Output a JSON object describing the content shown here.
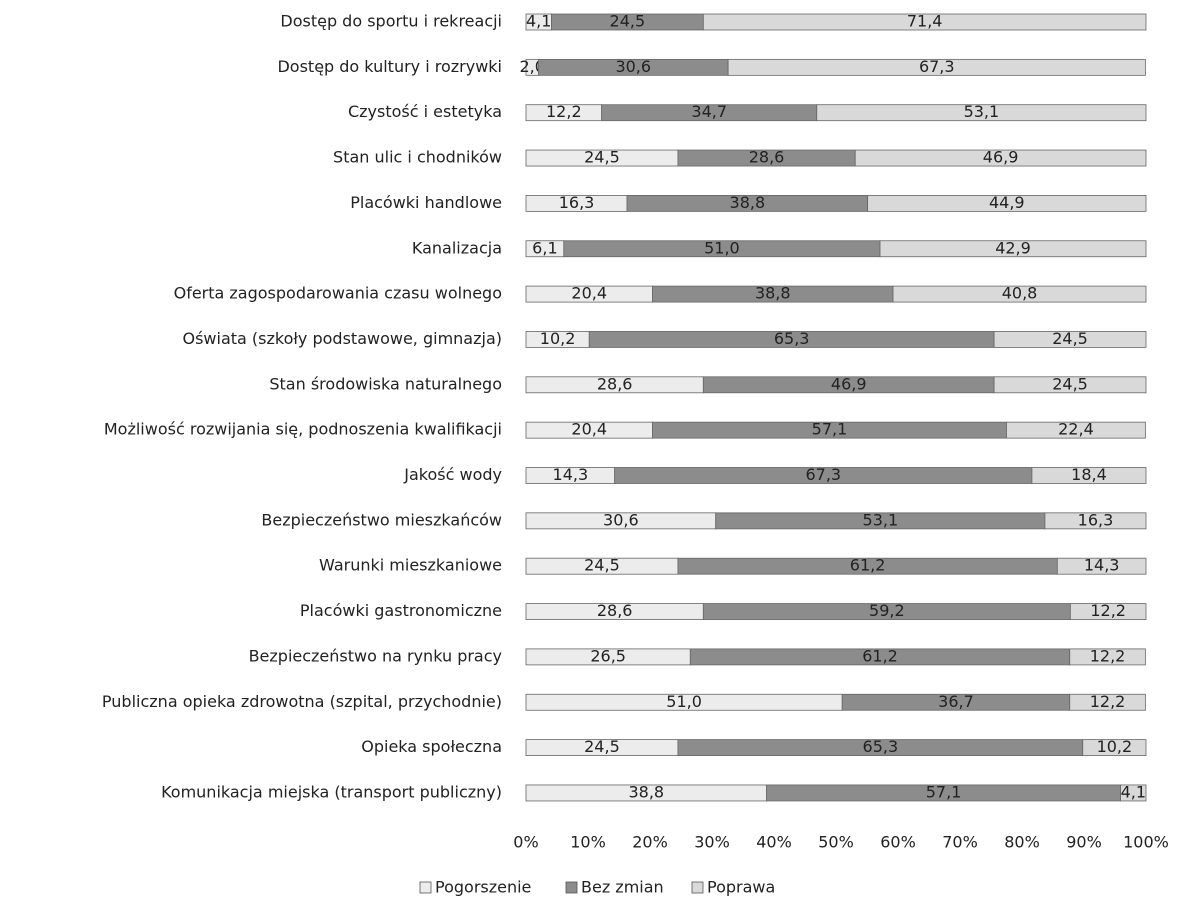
{
  "chart_data": {
    "type": "bar",
    "orientation": "horizontal",
    "stacked": true,
    "categories": [
      "Dostęp do sportu i rekreacji",
      "Dostęp do kultury i rozrywki",
      "Czystość i estetyka",
      "Stan ulic i chodników",
      "Placówki handlowe",
      "Kanalizacja",
      "Oferta zagospodarowania czasu wolnego",
      "Oświata (szkoły podstawowe, gimnazja)",
      "Stan środowiska naturalnego",
      "Możliwość rozwijania się, podnoszenia kwalifikacji",
      "Jakość wody",
      "Bezpieczeństwo mieszkańców",
      "Warunki mieszkaniowe",
      "Placówki gastronomiczne",
      "Bezpieczeństwo na rynku pracy",
      "Publiczna opieka zdrowotna (szpital, przychodnie)",
      "Opieka społeczna",
      "Komunikacja miejska (transport publiczny)"
    ],
    "series": [
      {
        "name": "Pogorszenie",
        "color": "#ececec",
        "values": [
          4.1,
          2.0,
          12.2,
          24.5,
          16.3,
          6.1,
          20.4,
          10.2,
          28.6,
          20.4,
          14.3,
          30.6,
          24.5,
          28.6,
          26.5,
          51.0,
          24.5,
          38.8
        ],
        "value_labels": [
          "4,1",
          "2,0",
          "12,2",
          "24,5",
          "16,3",
          "6,1",
          "20,4",
          "10,2",
          "28,6",
          "20,4",
          "14,3",
          "30,6",
          "24,5",
          "28,6",
          "26,5",
          "51,0",
          "24,5",
          "38,8"
        ]
      },
      {
        "name": "Bez zmian",
        "color": "#8c8c8c",
        "values": [
          24.5,
          30.6,
          34.7,
          28.6,
          38.8,
          51.0,
          38.8,
          65.3,
          46.9,
          57.1,
          67.3,
          53.1,
          61.2,
          59.2,
          61.2,
          36.7,
          65.3,
          57.1
        ],
        "value_labels": [
          "24,5",
          "30,6",
          "34,7",
          "28,6",
          "38,8",
          "51,0",
          "38,8",
          "65,3",
          "46,9",
          "57,1",
          "67,3",
          "53,1",
          "61,2",
          "59,2",
          "61,2",
          "36,7",
          "65,3",
          "57,1"
        ]
      },
      {
        "name": "Poprawa",
        "color": "#d9d9d9",
        "values": [
          71.4,
          67.3,
          53.1,
          46.9,
          44.9,
          42.9,
          40.8,
          24.5,
          24.5,
          22.4,
          18.4,
          16.3,
          14.3,
          12.2,
          12.2,
          12.2,
          10.2,
          4.1
        ],
        "value_labels": [
          "71,4",
          "67,3",
          "53,1",
          "46,9",
          "44,9",
          "42,9",
          "40,8",
          "24,5",
          "24,5",
          "22,4",
          "18,4",
          "16,3",
          "14,3",
          "12,2",
          "12,2",
          "12,2",
          "10,2",
          "4,1"
        ]
      }
    ],
    "xlim": [
      0,
      100
    ],
    "xticks": [
      {
        "value": 0,
        "label": "0%"
      },
      {
        "value": 10,
        "label": "10%"
      },
      {
        "value": 20,
        "label": "20%"
      },
      {
        "value": 30,
        "label": "30%"
      },
      {
        "value": 40,
        "label": "40%"
      },
      {
        "value": 50,
        "label": "50%"
      },
      {
        "value": 60,
        "label": "60%"
      },
      {
        "value": 70,
        "label": "70%"
      },
      {
        "value": 80,
        "label": "80%"
      },
      {
        "value": 90,
        "label": "90%"
      },
      {
        "value": 100,
        "label": "100%"
      }
    ],
    "legend": "bottom"
  }
}
